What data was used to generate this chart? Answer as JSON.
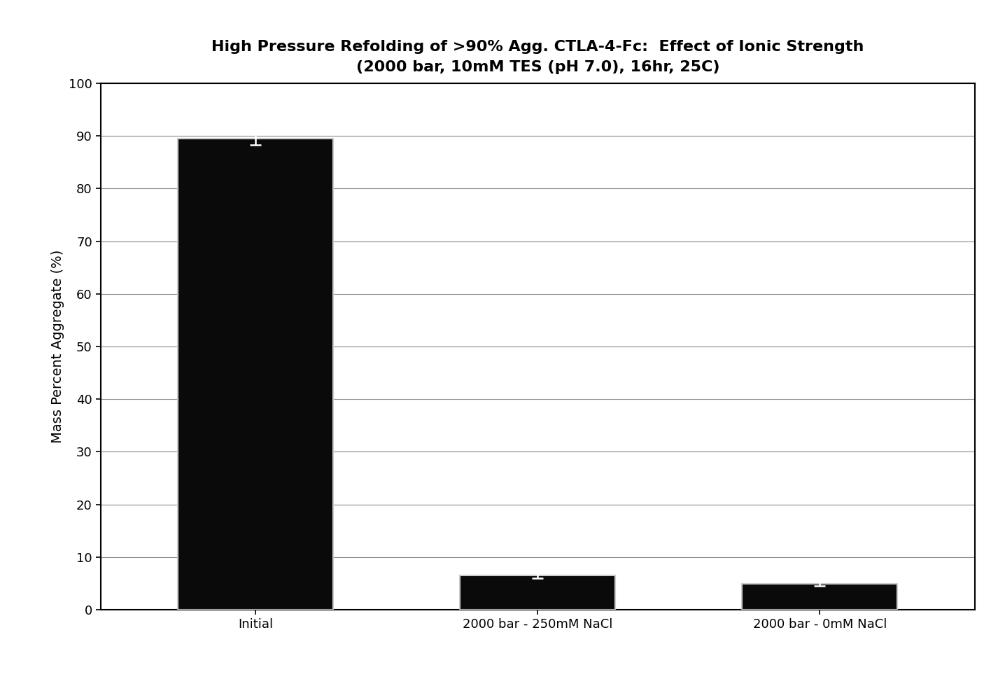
{
  "title_line1": "High Pressure Refolding of >90% Agg. CTLA-4-Fc:  Effect of Ionic Strength",
  "title_line2": "(2000 bar, 10mM TES (pH 7.0), 16hr, 25C)",
  "categories": [
    "Initial",
    "2000 bar - 250mM NaCl",
    "2000 bar - 0mM NaCl"
  ],
  "values": [
    89.5,
    6.5,
    5.0
  ],
  "errors": [
    1.2,
    0.5,
    0.4
  ],
  "bar_color": "#0a0a0a",
  "bar_edgecolor": "#cccccc",
  "ylabel": "Mass Percent Aggregate (%)",
  "ylim": [
    0,
    100
  ],
  "yticks": [
    0,
    10,
    20,
    30,
    40,
    50,
    60,
    70,
    80,
    90,
    100
  ],
  "background_color": "#ffffff",
  "plot_background": "#ffffff",
  "title_fontsize": 16,
  "axis_label_fontsize": 14,
  "tick_fontsize": 13,
  "bar_width": 0.55,
  "grid_color": "#888888",
  "error_color": "#ffffff",
  "error_linewidth": 1.8,
  "error_capsize": 6
}
